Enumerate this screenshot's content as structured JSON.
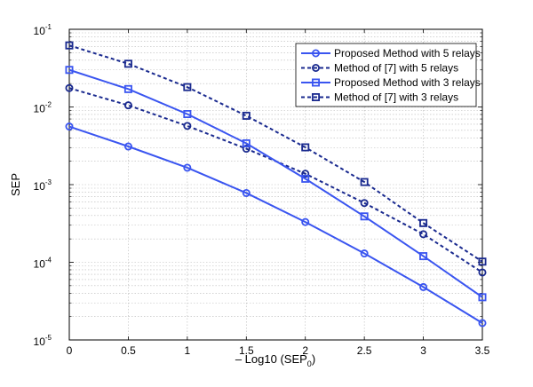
{
  "chart_data": {
    "type": "line",
    "title": "",
    "xlabel": "– Log10 (SEP",
    "xlabel_sub": "0",
    "xlabel_suffix": ")",
    "ylabel": "SEP",
    "xlim": [
      0,
      3.5
    ],
    "ylim": [
      1e-05,
      0.1
    ],
    "yscale": "log",
    "grid": true,
    "legend_position": "top-right",
    "x": [
      0,
      0.5,
      1,
      1.5,
      2,
      2.5,
      3,
      3.5
    ],
    "x_tick_labels": [
      "0",
      "0.5",
      "1",
      "1.5",
      "2",
      "2.5",
      "3",
      "3.5"
    ],
    "y_ticks": [
      {
        "value": 1e-05,
        "base": "10",
        "exp": "-5"
      },
      {
        "value": 0.0001,
        "base": "10",
        "exp": "-4"
      },
      {
        "value": 0.001,
        "base": "10",
        "exp": "-3"
      },
      {
        "value": 0.01,
        "base": "10",
        "exp": "-2"
      },
      {
        "value": 0.1,
        "base": "10",
        "exp": "-1"
      }
    ],
    "series": [
      {
        "name": "Proposed Method with 5 relays",
        "color": "#3a55f0",
        "dashed": false,
        "marker": "circle",
        "values": [
          0.0056,
          0.0031,
          0.00165,
          0.00078,
          0.00033,
          0.00013,
          4.8e-05,
          1.65e-05
        ]
      },
      {
        "name": "Method of [7] with 5 relays",
        "color": "#1a2a8f",
        "dashed": true,
        "marker": "circle",
        "values": [
          0.0175,
          0.0105,
          0.0057,
          0.0029,
          0.00138,
          0.00058,
          0.00023,
          7.4e-05
        ]
      },
      {
        "name": "Proposed Method with 3 relays",
        "color": "#3a55f0",
        "dashed": false,
        "marker": "square",
        "values": [
          0.03,
          0.017,
          0.0081,
          0.0034,
          0.00119,
          0.00039,
          0.00012,
          3.55e-05
        ]
      },
      {
        "name": "Method of [7] with 3 relays",
        "color": "#1a2a8f",
        "dashed": true,
        "marker": "square",
        "values": [
          0.062,
          0.036,
          0.018,
          0.0077,
          0.00302,
          0.00108,
          0.00032,
          0.000102
        ]
      }
    ]
  }
}
